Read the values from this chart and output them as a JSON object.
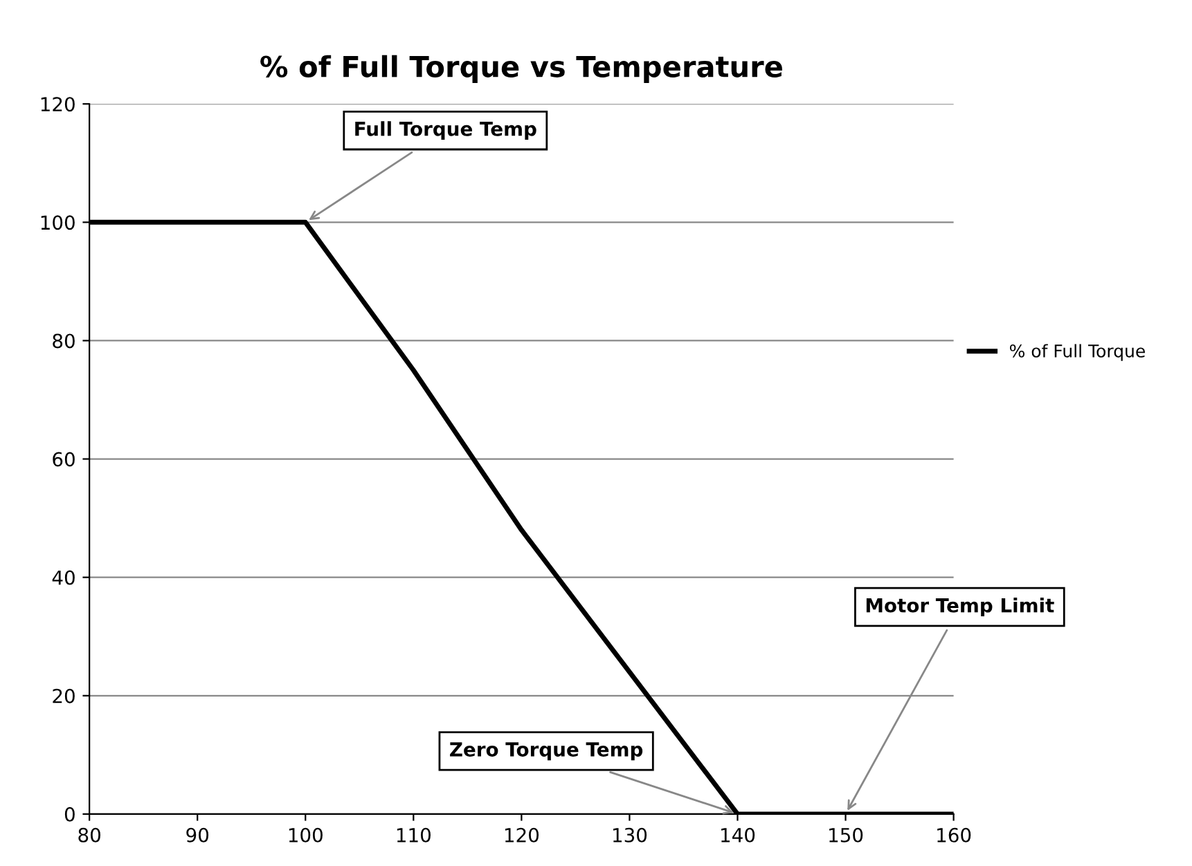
{
  "chart_data": {
    "type": "line",
    "title": "% of Full Torque vs Temperature",
    "x": [
      80,
      100,
      110,
      120,
      140,
      160
    ],
    "series": [
      {
        "name": "% of Full Torque",
        "color": "#000000",
        "values": [
          100,
          100,
          75,
          48,
          0,
          0
        ]
      }
    ],
    "xlim": [
      80,
      160
    ],
    "xticks": [
      80,
      90,
      100,
      110,
      120,
      130,
      140,
      150,
      160
    ],
    "ylim": [
      0,
      120
    ],
    "yticks": [
      0,
      20,
      40,
      60,
      80,
      100,
      120
    ],
    "grid": "y",
    "legend": "right",
    "marker": "none",
    "line_style": "solid",
    "annotations": [
      {
        "text": "Full Torque Temp",
        "x": 100,
        "y": 100
      },
      {
        "text": "Zero Torque Temp",
        "x": 140,
        "y": 0
      },
      {
        "text": "Motor Temp Limit",
        "x": 150,
        "y": 0
      }
    ]
  }
}
